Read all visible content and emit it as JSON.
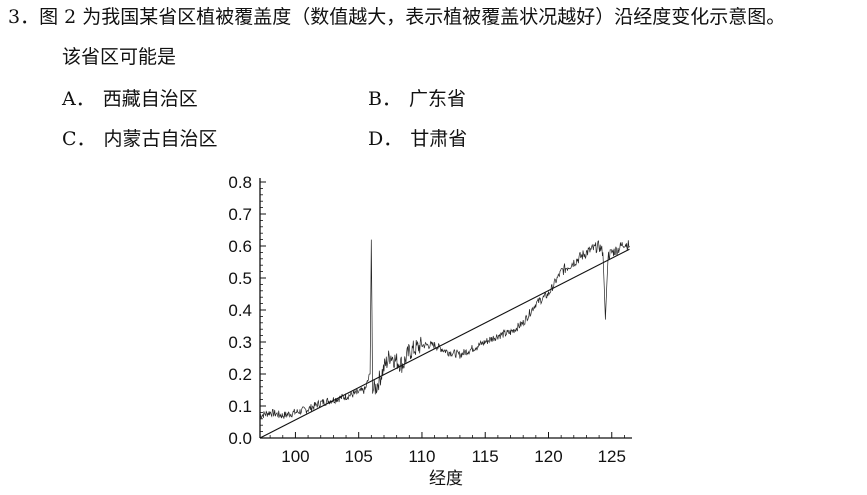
{
  "question": {
    "number": "3．",
    "stem_line1": "图 2 为我国某省区植被覆盖度（数值越大，表示植被覆盖状况越好）沿经度变化示意图。",
    "stem_line2": "该省区可能是",
    "options": [
      {
        "letter": "A．",
        "text": "西藏自治区"
      },
      {
        "letter": "B．",
        "text": "广东省"
      },
      {
        "letter": "C．",
        "text": "内蒙古自治区"
      },
      {
        "letter": "D．",
        "text": "甘肃省"
      }
    ]
  },
  "chart_data": {
    "type": "line",
    "xlabel": "经度",
    "ylabel": "",
    "xlim": [
      97.2,
      126.6
    ],
    "ylim": [
      0,
      0.8
    ],
    "x_ticks": [
      100,
      105,
      110,
      115,
      120,
      125
    ],
    "y_ticks": [
      "0.0",
      "0.1",
      "0.2",
      "0.3",
      "0.4",
      "0.5",
      "0.6",
      "0.7",
      "0.8"
    ],
    "grid": false,
    "series": [
      {
        "x": [
          97.2,
          98,
          99,
          100,
          101,
          102,
          103,
          104,
          104.8,
          105.5,
          105.9,
          106.0,
          106.1,
          106.4,
          107,
          107.5,
          108,
          108.5,
          109,
          110,
          111,
          112,
          113,
          114,
          115,
          116,
          117,
          118,
          119,
          120,
          121,
          122,
          123,
          124,
          124.3,
          124.5,
          124.7,
          125,
          125.5,
          126,
          126.4
        ],
        "y": [
          0.07,
          0.08,
          0.07,
          0.08,
          0.09,
          0.11,
          0.12,
          0.13,
          0.14,
          0.15,
          0.2,
          0.62,
          0.15,
          0.16,
          0.22,
          0.26,
          0.24,
          0.23,
          0.27,
          0.29,
          0.29,
          0.27,
          0.26,
          0.28,
          0.3,
          0.32,
          0.33,
          0.36,
          0.42,
          0.45,
          0.52,
          0.55,
          0.58,
          0.6,
          0.58,
          0.37,
          0.57,
          0.58,
          0.59,
          0.61,
          0.6
        ]
      },
      {
        "x": [
          97.2,
          126.4
        ],
        "y": [
          0.0,
          0.59
        ]
      }
    ]
  }
}
